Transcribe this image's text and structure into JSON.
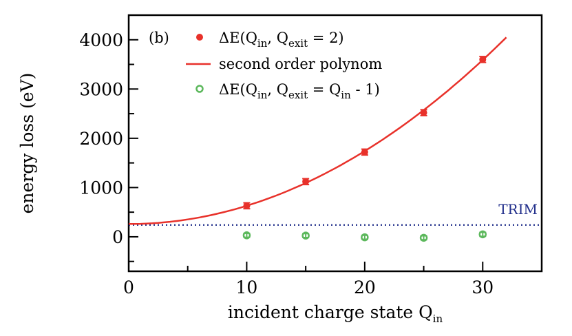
{
  "chart_data": {
    "type": "scatter",
    "panel_label": "(b)",
    "xlabel": "incident charge state Q",
    "xlabel_sub": "in",
    "ylabel": "energy loss (eV)",
    "xlim": [
      0,
      35
    ],
    "ylim": [
      -700,
      4500
    ],
    "x_ticks": [
      "0",
      "10",
      "20",
      "30"
    ],
    "y_ticks": [
      "0",
      "1000",
      "2000",
      "3000",
      "4000"
    ],
    "x_tick_values": [
      0,
      10,
      20,
      30
    ],
    "y_tick_values": [
      0,
      1000,
      2000,
      3000,
      4000
    ],
    "x_minor_ticks": [
      5,
      15,
      25
    ],
    "y_minor_ticks": [
      -500,
      500,
      1500,
      2500,
      3500
    ],
    "grid": false,
    "legend_position": "top-left",
    "colors": {
      "red": "#e8312a",
      "green": "#5cb85c",
      "blue": "#1f2d8a",
      "axis": "#000000"
    },
    "series": [
      {
        "name": "ΔE(Qin, Qexit = 2)",
        "legend_parts": {
          "pre": "ΔE(Q",
          "sub1": "in",
          "mid": ", Q",
          "sub2": "exit",
          "post": " = 2)"
        },
        "marker": "filled-circle",
        "color": "#e8312a",
        "x": [
          10,
          15,
          20,
          25,
          30
        ],
        "y": [
          630,
          1120,
          1720,
          2520,
          3600
        ],
        "yerr": [
          60,
          60,
          60,
          60,
          60
        ]
      },
      {
        "name": "second order polynom",
        "marker": "line",
        "color": "#e8312a",
        "x_range": [
          0,
          32
        ],
        "coefficients": [
          260,
          0,
          3.7
        ]
      },
      {
        "name": "ΔE(Qin, Qexit = Qin - 1)",
        "legend_parts": {
          "pre": "ΔE(Q",
          "sub1": "in",
          "mid": ", Q",
          "sub2": "exit",
          "mid2": " = Q",
          "sub3": "in",
          "post": " - 1)"
        },
        "marker": "open-circle",
        "color": "#5cb85c",
        "x": [
          10,
          15,
          20,
          25,
          30
        ],
        "y": [
          30,
          25,
          -10,
          -20,
          50
        ],
        "yerr": [
          40,
          40,
          40,
          40,
          40
        ]
      }
    ],
    "annotations": [
      {
        "text": "TRIM",
        "y": 240,
        "style": "dotted-horizontal-line",
        "color": "#1f2d8a"
      }
    ]
  }
}
